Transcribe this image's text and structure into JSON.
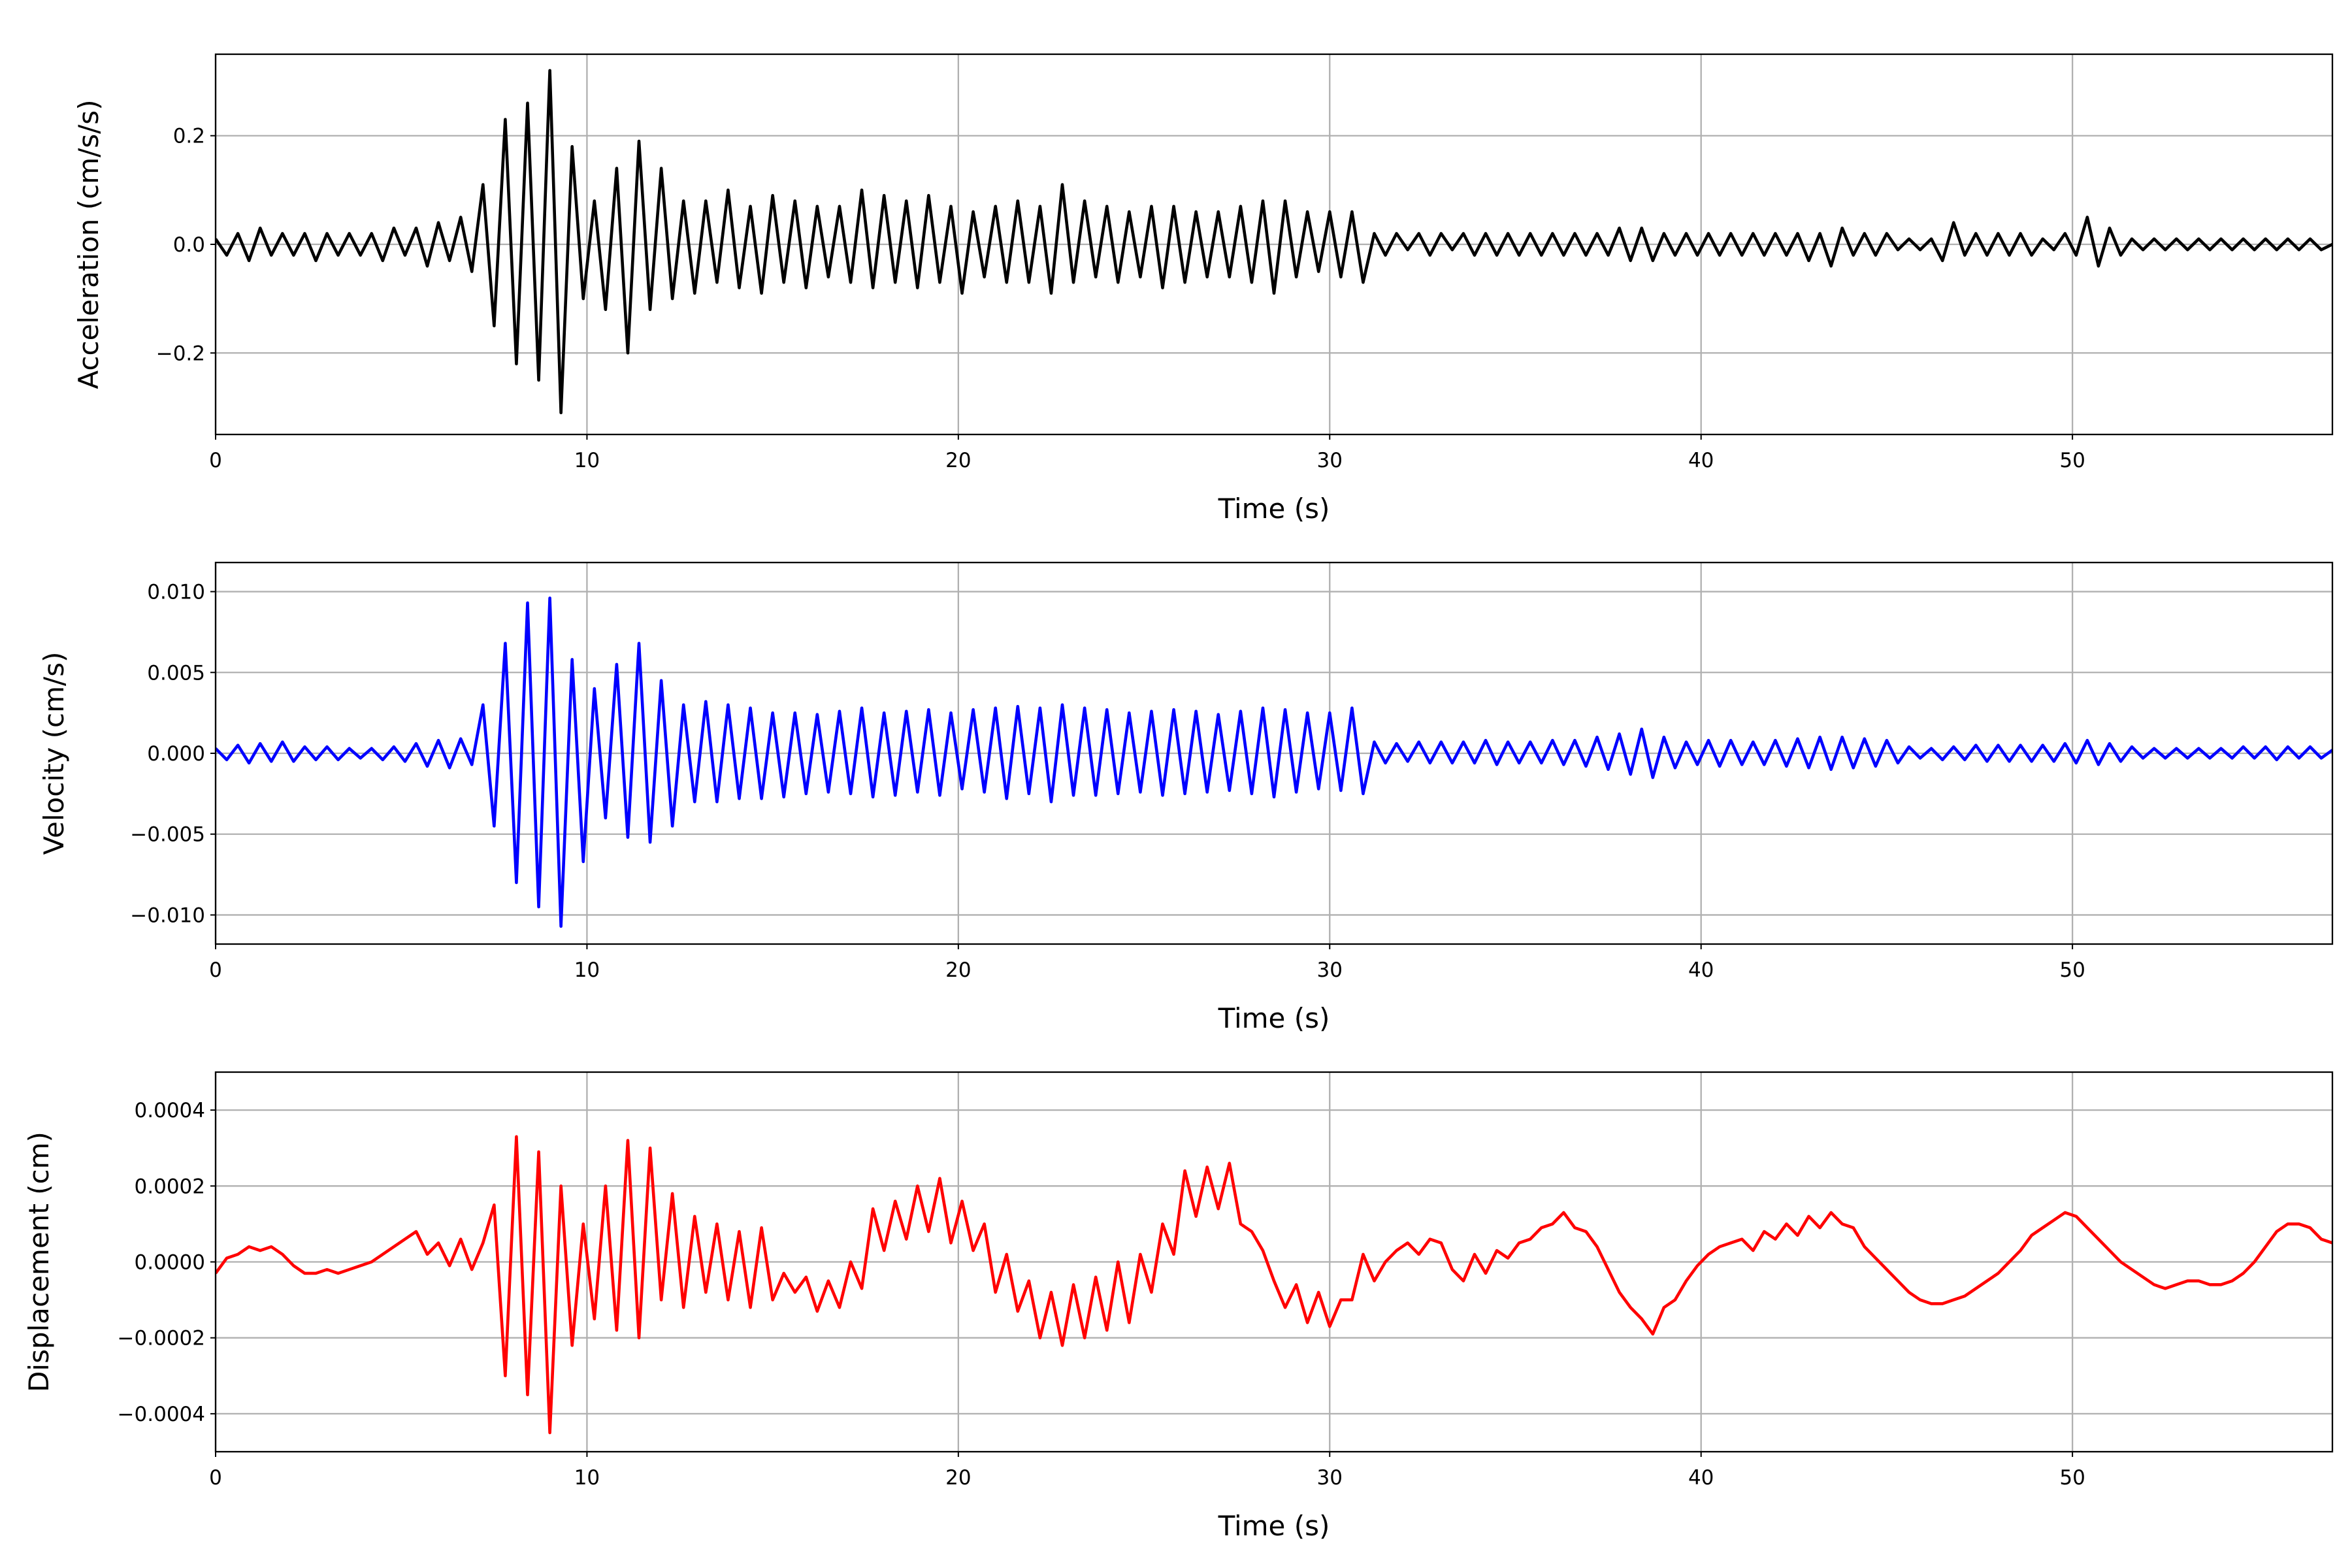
{
  "chart_data": [
    {
      "type": "line",
      "ylabel": "Acceleration (cm/s/s)",
      "xlabel": "Time (s)",
      "color": "#000000",
      "grid": true,
      "xlim": [
        0,
        57
      ],
      "xticks": [
        0,
        10,
        20,
        30,
        40,
        50
      ],
      "ylim": [
        -0.35,
        0.35
      ],
      "yticks": [
        {
          "value": -0.2,
          "label": "−0.2"
        },
        {
          "value": 0,
          "label": "0.0"
        },
        0.2
      ],
      "x": [
        0,
        0.3,
        0.6,
        0.9,
        1.2,
        1.5,
        1.8,
        2.1,
        2.4,
        2.7,
        3,
        3.3,
        3.6,
        3.9,
        4.2,
        4.5,
        4.8,
        5.1,
        5.4,
        5.7,
        6,
        6.3,
        6.6,
        6.9,
        7.2,
        7.5,
        7.8,
        8.1,
        8.4,
        8.7,
        9,
        9.3,
        9.6,
        9.9,
        10.2,
        10.5,
        10.8,
        11.1,
        11.4,
        11.7,
        12,
        12.3,
        12.6,
        12.9,
        13.2,
        13.5,
        13.8,
        14.1,
        14.4,
        14.7,
        15,
        15.3,
        15.6,
        15.9,
        16.2,
        16.5,
        16.8,
        17.1,
        17.4,
        17.7,
        18,
        18.3,
        18.6,
        18.9,
        19.2,
        19.5,
        19.8,
        20.1,
        20.4,
        20.7,
        21,
        21.3,
        21.6,
        21.9,
        22.2,
        22.5,
        22.8,
        23.1,
        23.4,
        23.7,
        24,
        24.3,
        24.6,
        24.9,
        25.2,
        25.5,
        25.8,
        26.1,
        26.4,
        26.7,
        27,
        27.3,
        27.6,
        27.9,
        28.2,
        28.5,
        28.8,
        29.1,
        29.4,
        29.7,
        30,
        30.3,
        30.6,
        30.9,
        31.2,
        31.5,
        31.8,
        32.1,
        32.4,
        32.7,
        33,
        33.3,
        33.6,
        33.9,
        34.2,
        34.5,
        34.8,
        35.1,
        35.4,
        35.7,
        36,
        36.3,
        36.6,
        36.9,
        37.2,
        37.5,
        37.8,
        38.1,
        38.4,
        38.7,
        39,
        39.3,
        39.6,
        39.9,
        40.2,
        40.5,
        40.8,
        41.1,
        41.4,
        41.7,
        42,
        42.3,
        42.6,
        42.9,
        43.2,
        43.5,
        43.8,
        44.1,
        44.4,
        44.7,
        45,
        45.3,
        45.6,
        45.9,
        46.2,
        46.5,
        46.8,
        47.1,
        47.4,
        47.7,
        48,
        48.3,
        48.6,
        48.9,
        49.2,
        49.5,
        49.8,
        50.1,
        50.4,
        50.7,
        51,
        51.3,
        51.6,
        51.9,
        52.2,
        52.5,
        52.8,
        53.1,
        53.4,
        53.7,
        54,
        54.3,
        54.6,
        54.9,
        55.2,
        55.5,
        55.8,
        56.1,
        56.4,
        56.7,
        57
      ],
      "values": [
        0.01,
        -0.02,
        0.02,
        -0.03,
        0.03,
        -0.02,
        0.02,
        -0.02,
        0.02,
        -0.03,
        0.02,
        -0.02,
        0.02,
        -0.02,
        0.02,
        -0.03,
        0.03,
        -0.02,
        0.03,
        -0.04,
        0.04,
        -0.03,
        0.05,
        -0.05,
        0.11,
        -0.15,
        0.23,
        -0.22,
        0.26,
        -0.25,
        0.32,
        -0.31,
        0.18,
        -0.1,
        0.08,
        -0.12,
        0.14,
        -0.2,
        0.19,
        -0.12,
        0.14,
        -0.1,
        0.08,
        -0.09,
        0.08,
        -0.07,
        0.1,
        -0.08,
        0.07,
        -0.09,
        0.09,
        -0.07,
        0.08,
        -0.08,
        0.07,
        -0.06,
        0.07,
        -0.07,
        0.1,
        -0.08,
        0.09,
        -0.07,
        0.08,
        -0.08,
        0.09,
        -0.07,
        0.07,
        -0.09,
        0.06,
        -0.06,
        0.07,
        -0.07,
        0.08,
        -0.07,
        0.07,
        -0.09,
        0.11,
        -0.07,
        0.08,
        -0.06,
        0.07,
        -0.07,
        0.06,
        -0.06,
        0.07,
        -0.08,
        0.07,
        -0.07,
        0.06,
        -0.06,
        0.06,
        -0.06,
        0.07,
        -0.07,
        0.08,
        -0.09,
        0.08,
        -0.06,
        0.06,
        -0.05,
        0.06,
        -0.06,
        0.06,
        -0.07,
        0.02,
        -0.02,
        0.02,
        -0.01,
        0.02,
        -0.02,
        0.02,
        -0.01,
        0.02,
        -0.02,
        0.02,
        -0.02,
        0.02,
        -0.02,
        0.02,
        -0.02,
        0.02,
        -0.02,
        0.02,
        -0.02,
        0.02,
        -0.02,
        0.03,
        -0.03,
        0.03,
        -0.03,
        0.02,
        -0.02,
        0.02,
        -0.02,
        0.02,
        -0.02,
        0.02,
        -0.02,
        0.02,
        -0.02,
        0.02,
        -0.02,
        0.02,
        -0.03,
        0.02,
        -0.04,
        0.03,
        -0.02,
        0.02,
        -0.02,
        0.02,
        -0.01,
        0.01,
        -0.01,
        0.01,
        -0.03,
        0.04,
        -0.02,
        0.02,
        -0.02,
        0.02,
        -0.02,
        0.02,
        -0.02,
        0.01,
        -0.01,
        0.02,
        -0.02,
        0.05,
        -0.04,
        0.03,
        -0.02,
        0.01,
        -0.01,
        0.01,
        -0.01,
        0.01,
        -0.01,
        0.01,
        -0.01,
        0.01,
        -0.01,
        0.01,
        -0.01,
        0.01,
        -0.01,
        0.01,
        -0.01,
        0.01,
        -0.01,
        0
      ]
    },
    {
      "type": "line",
      "ylabel": "Velocity (cm/s)",
      "xlabel": "Time (s)",
      "color": "#0000ff",
      "grid": true,
      "xlim": [
        0,
        57
      ],
      "xticks": [
        0,
        10,
        20,
        30,
        40,
        50
      ],
      "ylim": [
        -0.0118,
        0.0118
      ],
      "yticks": [
        {
          "value": -0.01,
          "label": "−0.010"
        },
        {
          "value": -0.005,
          "label": "−0.005"
        },
        {
          "value": 0,
          "label": "0.000"
        },
        0.005,
        {
          "value": 0.01,
          "label": "0.010"
        }
      ],
      "x": [
        0,
        0.3,
        0.6,
        0.9,
        1.2,
        1.5,
        1.8,
        2.1,
        2.4,
        2.7,
        3,
        3.3,
        3.6,
        3.9,
        4.2,
        4.5,
        4.8,
        5.1,
        5.4,
        5.7,
        6,
        6.3,
        6.6,
        6.9,
        7.2,
        7.5,
        7.8,
        8.1,
        8.4,
        8.7,
        9,
        9.3,
        9.6,
        9.9,
        10.2,
        10.5,
        10.8,
        11.1,
        11.4,
        11.7,
        12,
        12.3,
        12.6,
        12.9,
        13.2,
        13.5,
        13.8,
        14.1,
        14.4,
        14.7,
        15,
        15.3,
        15.6,
        15.9,
        16.2,
        16.5,
        16.8,
        17.1,
        17.4,
        17.7,
        18,
        18.3,
        18.6,
        18.9,
        19.2,
        19.5,
        19.8,
        20.1,
        20.4,
        20.7,
        21,
        21.3,
        21.6,
        21.9,
        22.2,
        22.5,
        22.8,
        23.1,
        23.4,
        23.7,
        24,
        24.3,
        24.6,
        24.9,
        25.2,
        25.5,
        25.8,
        26.1,
        26.4,
        26.7,
        27,
        27.3,
        27.6,
        27.9,
        28.2,
        28.5,
        28.8,
        29.1,
        29.4,
        29.7,
        30,
        30.3,
        30.6,
        30.9,
        31.2,
        31.5,
        31.8,
        32.1,
        32.4,
        32.7,
        33,
        33.3,
        33.6,
        33.9,
        34.2,
        34.5,
        34.8,
        35.1,
        35.4,
        35.7,
        36,
        36.3,
        36.6,
        36.9,
        37.2,
        37.5,
        37.8,
        38.1,
        38.4,
        38.7,
        39,
        39.3,
        39.6,
        39.9,
        40.2,
        40.5,
        40.8,
        41.1,
        41.4,
        41.7,
        42,
        42.3,
        42.6,
        42.9,
        43.2,
        43.5,
        43.8,
        44.1,
        44.4,
        44.7,
        45,
        45.3,
        45.6,
        45.9,
        46.2,
        46.5,
        46.8,
        47.1,
        47.4,
        47.7,
        48,
        48.3,
        48.6,
        48.9,
        49.2,
        49.5,
        49.8,
        50.1,
        50.4,
        50.7,
        51,
        51.3,
        51.6,
        51.9,
        52.2,
        52.5,
        52.8,
        53.1,
        53.4,
        53.7,
        54,
        54.3,
        54.6,
        54.9,
        55.2,
        55.5,
        55.8,
        56.1,
        56.4,
        56.7,
        57
      ],
      "values": [
        0.0003,
        -0.0004,
        0.0005,
        -0.0006,
        0.0006,
        -0.0005,
        0.0007,
        -0.0005,
        0.0004,
        -0.0004,
        0.0004,
        -0.0004,
        0.0003,
        -0.0003,
        0.0003,
        -0.0004,
        0.0004,
        -0.0005,
        0.0006,
        -0.0008,
        0.0008,
        -0.0009,
        0.0009,
        -0.0007,
        0.003,
        -0.0045,
        0.0068,
        -0.008,
        0.0093,
        -0.0095,
        0.0096,
        -0.0107,
        0.0058,
        -0.0067,
        0.004,
        -0.004,
        0.0055,
        -0.0052,
        0.0068,
        -0.0055,
        0.0045,
        -0.0045,
        0.003,
        -0.003,
        0.0032,
        -0.003,
        0.003,
        -0.0028,
        0.0028,
        -0.0028,
        0.0025,
        -0.0027,
        0.0025,
        -0.0025,
        0.0024,
        -0.0024,
        0.0026,
        -0.0025,
        0.0028,
        -0.0027,
        0.0025,
        -0.0026,
        0.0026,
        -0.0024,
        0.0027,
        -0.0026,
        0.0025,
        -0.0022,
        0.0027,
        -0.0024,
        0.0028,
        -0.0028,
        0.0029,
        -0.0025,
        0.0028,
        -0.003,
        0.003,
        -0.0026,
        0.0028,
        -0.0026,
        0.0027,
        -0.0025,
        0.0025,
        -0.0024,
        0.0026,
        -0.0026,
        0.0027,
        -0.0025,
        0.0026,
        -0.0024,
        0.0024,
        -0.0023,
        0.0026,
        -0.0025,
        0.0028,
        -0.0027,
        0.0027,
        -0.0024,
        0.0025,
        -0.0022,
        0.0025,
        -0.0023,
        0.0028,
        -0.0025,
        0.0007,
        -0.0006,
        0.0006,
        -0.0005,
        0.0007,
        -0.0006,
        0.0007,
        -0.0006,
        0.0007,
        -0.0006,
        0.0008,
        -0.0007,
        0.0007,
        -0.0006,
        0.0007,
        -0.0006,
        0.0008,
        -0.0007,
        0.0008,
        -0.0008,
        0.001,
        -0.001,
        0.0012,
        -0.0013,
        0.0015,
        -0.0015,
        0.001,
        -0.0009,
        0.0007,
        -0.0007,
        0.0008,
        -0.0008,
        0.0008,
        -0.0007,
        0.0007,
        -0.0007,
        0.0008,
        -0.0008,
        0.0009,
        -0.0009,
        0.001,
        -0.001,
        0.001,
        -0.0009,
        0.0009,
        -0.0008,
        0.0008,
        -0.0006,
        0.0004,
        -0.0003,
        0.0003,
        -0.0004,
        0.0004,
        -0.0004,
        0.0005,
        -0.0005,
        0.0005,
        -0.0005,
        0.0005,
        -0.0005,
        0.0005,
        -0.0005,
        0.0006,
        -0.0006,
        0.0008,
        -0.0007,
        0.0006,
        -0.0005,
        0.0004,
        -0.0003,
        0.0003,
        -0.0003,
        0.0003,
        -0.0003,
        0.0003,
        -0.0003,
        0.0003,
        -0.0003,
        0.0004,
        -0.0003,
        0.0004,
        -0.0004,
        0.0004,
        -0.0003,
        0.0004,
        -0.0003,
        0.0002
      ]
    },
    {
      "type": "line",
      "ylabel": "Displacement (cm)",
      "xlabel": "Time (s)",
      "color": "#ff0000",
      "grid": true,
      "xlim": [
        0,
        57
      ],
      "xticks": [
        0,
        10,
        20,
        30,
        40,
        50
      ],
      "ylim": [
        -0.0005,
        0.0005
      ],
      "yticks": [
        {
          "value": -0.0004,
          "label": "−0.0004"
        },
        {
          "value": -0.0002,
          "label": "−0.0002"
        },
        {
          "value": 0,
          "label": "0.0000"
        },
        0.0002,
        0.0004
      ],
      "x": [
        0,
        0.3,
        0.6,
        0.9,
        1.2,
        1.5,
        1.8,
        2.1,
        2.4,
        2.7,
        3,
        3.3,
        3.6,
        3.9,
        4.2,
        4.5,
        4.8,
        5.1,
        5.4,
        5.7,
        6,
        6.3,
        6.6,
        6.9,
        7.2,
        7.5,
        7.8,
        8.1,
        8.4,
        8.7,
        9,
        9.3,
        9.6,
        9.9,
        10.2,
        10.5,
        10.8,
        11.1,
        11.4,
        11.7,
        12,
        12.3,
        12.6,
        12.9,
        13.2,
        13.5,
        13.8,
        14.1,
        14.4,
        14.7,
        15,
        15.3,
        15.6,
        15.9,
        16.2,
        16.5,
        16.8,
        17.1,
        17.4,
        17.7,
        18,
        18.3,
        18.6,
        18.9,
        19.2,
        19.5,
        19.8,
        20.1,
        20.4,
        20.7,
        21,
        21.3,
        21.6,
        21.9,
        22.2,
        22.5,
        22.8,
        23.1,
        23.4,
        23.7,
        24,
        24.3,
        24.6,
        24.9,
        25.2,
        25.5,
        25.8,
        26.1,
        26.4,
        26.7,
        27,
        27.3,
        27.6,
        27.9,
        28.2,
        28.5,
        28.8,
        29.1,
        29.4,
        29.7,
        30,
        30.3,
        30.6,
        30.9,
        31.2,
        31.5,
        31.8,
        32.1,
        32.4,
        32.7,
        33,
        33.3,
        33.6,
        33.9,
        34.2,
        34.5,
        34.8,
        35.1,
        35.4,
        35.7,
        36,
        36.3,
        36.6,
        36.9,
        37.2,
        37.5,
        37.8,
        38.1,
        38.4,
        38.7,
        39,
        39.3,
        39.6,
        39.9,
        40.2,
        40.5,
        40.8,
        41.1,
        41.4,
        41.7,
        42,
        42.3,
        42.6,
        42.9,
        43.2,
        43.5,
        43.8,
        44.1,
        44.4,
        44.7,
        45,
        45.3,
        45.6,
        45.9,
        46.2,
        46.5,
        46.8,
        47.1,
        47.4,
        47.7,
        48,
        48.3,
        48.6,
        48.9,
        49.2,
        49.5,
        49.8,
        50.1,
        50.4,
        50.7,
        51,
        51.3,
        51.6,
        51.9,
        52.2,
        52.5,
        52.8,
        53.1,
        53.4,
        53.7,
        54,
        54.3,
        54.6,
        54.9,
        55.2,
        55.5,
        55.8,
        56.1,
        56.4,
        56.7,
        57
      ],
      "values": [
        -3e-05,
        1e-05,
        2e-05,
        4e-05,
        3e-05,
        4e-05,
        2e-05,
        -1e-05,
        -3e-05,
        -3e-05,
        -2e-05,
        -3e-05,
        -2e-05,
        -1e-05,
        0,
        2e-05,
        4e-05,
        6e-05,
        8e-05,
        2e-05,
        5e-05,
        -1e-05,
        6e-05,
        -2e-05,
        5e-05,
        0.00015,
        -0.0003,
        0.00033,
        -0.00035,
        0.00029,
        -0.00045,
        0.0002,
        -0.00022,
        0.0001,
        -0.00015,
        0.0002,
        -0.00018,
        0.00032,
        -0.0002,
        0.0003,
        -0.0001,
        0.00018,
        -0.00012,
        0.00012,
        -8e-05,
        0.0001,
        -0.0001,
        8e-05,
        -0.00012,
        9e-05,
        -0.0001,
        -3e-05,
        -8e-05,
        -4e-05,
        -0.00013,
        -5e-05,
        -0.00012,
        0,
        -7e-05,
        0.00014,
        3e-05,
        0.00016,
        6e-05,
        0.0002,
        8e-05,
        0.00022,
        5e-05,
        0.00016,
        3e-05,
        0.0001,
        -8e-05,
        2e-05,
        -0.00013,
        -5e-05,
        -0.0002,
        -8e-05,
        -0.00022,
        -6e-05,
        -0.0002,
        -4e-05,
        -0.00018,
        0,
        -0.00016,
        2e-05,
        -8e-05,
        0.0001,
        2e-05,
        0.00024,
        0.00012,
        0.00025,
        0.00014,
        0.00026,
        0.0001,
        8e-05,
        3e-05,
        -5e-05,
        -0.00012,
        -6e-05,
        -0.00016,
        -8e-05,
        -0.00017,
        -0.0001,
        -0.0001,
        2e-05,
        -5e-05,
        0,
        3e-05,
        5e-05,
        2e-05,
        6e-05,
        5e-05,
        -2e-05,
        -5e-05,
        2e-05,
        -3e-05,
        3e-05,
        1e-05,
        5e-05,
        6e-05,
        9e-05,
        0.0001,
        0.00013,
        9e-05,
        8e-05,
        4e-05,
        -2e-05,
        -8e-05,
        -0.00012,
        -0.00015,
        -0.00019,
        -0.00012,
        -0.0001,
        -5e-05,
        -1e-05,
        2e-05,
        4e-05,
        5e-05,
        6e-05,
        3e-05,
        8e-05,
        6e-05,
        0.0001,
        7e-05,
        0.00012,
        9e-05,
        0.00013,
        0.0001,
        9e-05,
        4e-05,
        1e-05,
        -2e-05,
        -5e-05,
        -8e-05,
        -0.0001,
        -0.00011,
        -0.00011,
        -0.0001,
        -9e-05,
        -7e-05,
        -5e-05,
        -3e-05,
        0,
        3e-05,
        7e-05,
        9e-05,
        0.00011,
        0.00013,
        0.00012,
        9e-05,
        6e-05,
        3e-05,
        0,
        -2e-05,
        -4e-05,
        -6e-05,
        -7e-05,
        -6e-05,
        -5e-05,
        -5e-05,
        -6e-05,
        -6e-05,
        -5e-05,
        -3e-05,
        0,
        4e-05,
        8e-05,
        0.0001,
        0.0001,
        9e-05,
        6e-05,
        5e-05
      ]
    }
  ]
}
